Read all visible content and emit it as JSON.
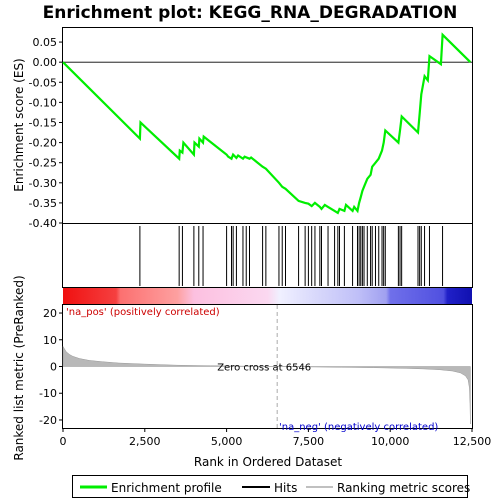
{
  "chart_data": {
    "type": "line",
    "title": "Enrichment plot: KEGG_RNA_DEGRADATION",
    "es_panel": {
      "ylabel": "Enrichment score (ES)",
      "ylim": [
        -0.4,
        0.085
      ],
      "yticks": [
        0.05,
        0.0,
        -0.05,
        -0.1,
        -0.15,
        -0.2,
        -0.25,
        -0.3,
        -0.35,
        -0.4
      ],
      "ytick_labels": [
        "0.05",
        "0.00",
        "-0.05",
        "-0.10",
        "-0.15",
        "-0.20",
        "-0.25",
        "-0.30",
        "-0.35",
        "-0.40"
      ],
      "line_color": "#00ee00",
      "points": [
        [
          0,
          0.0
        ],
        [
          2350,
          -0.19
        ],
        [
          2370,
          -0.15
        ],
        [
          3550,
          -0.24
        ],
        [
          3570,
          -0.22
        ],
        [
          3650,
          -0.225
        ],
        [
          3680,
          -0.2
        ],
        [
          4000,
          -0.23
        ],
        [
          4020,
          -0.2
        ],
        [
          4150,
          -0.21
        ],
        [
          4170,
          -0.19
        ],
        [
          4280,
          -0.2
        ],
        [
          4300,
          -0.185
        ],
        [
          5000,
          -0.23
        ],
        [
          5050,
          -0.235
        ],
        [
          5150,
          -0.24
        ],
        [
          5200,
          -0.23
        ],
        [
          5300,
          -0.238
        ],
        [
          5350,
          -0.232
        ],
        [
          5500,
          -0.24
        ],
        [
          5550,
          -0.235
        ],
        [
          5700,
          -0.24
        ],
        [
          5750,
          -0.237
        ],
        [
          6100,
          -0.26
        ],
        [
          6200,
          -0.265
        ],
        [
          6600,
          -0.3
        ],
        [
          6700,
          -0.31
        ],
        [
          6800,
          -0.315
        ],
        [
          7200,
          -0.345
        ],
        [
          7400,
          -0.35
        ],
        [
          7500,
          -0.352
        ],
        [
          7600,
          -0.358
        ],
        [
          7700,
          -0.35
        ],
        [
          7850,
          -0.36
        ],
        [
          7900,
          -0.365
        ],
        [
          8000,
          -0.355
        ],
        [
          8100,
          -0.36
        ],
        [
          8300,
          -0.37
        ],
        [
          8400,
          -0.375
        ],
        [
          8450,
          -0.365
        ],
        [
          8600,
          -0.37
        ],
        [
          8650,
          -0.355
        ],
        [
          8850,
          -0.37
        ],
        [
          8900,
          -0.36
        ],
        [
          9000,
          -0.37
        ],
        [
          9050,
          -0.35
        ],
        [
          9100,
          -0.335
        ],
        [
          9150,
          -0.32
        ],
        [
          9200,
          -0.31
        ],
        [
          9300,
          -0.29
        ],
        [
          9400,
          -0.28
        ],
        [
          9450,
          -0.26
        ],
        [
          9550,
          -0.25
        ],
        [
          9650,
          -0.24
        ],
        [
          9750,
          -0.22
        ],
        [
          9800,
          -0.2
        ],
        [
          9850,
          -0.17
        ],
        [
          10250,
          -0.2
        ],
        [
          10300,
          -0.17
        ],
        [
          10350,
          -0.135
        ],
        [
          10850,
          -0.175
        ],
        [
          10900,
          -0.13
        ],
        [
          10950,
          -0.08
        ],
        [
          11050,
          -0.035
        ],
        [
          11150,
          -0.045
        ],
        [
          11200,
          0.015
        ],
        [
          11550,
          -0.005
        ],
        [
          11600,
          0.068
        ],
        [
          12450,
          0.0
        ]
      ]
    },
    "hits": [
      2350,
      3550,
      3650,
      4000,
      4150,
      4280,
      5000,
      5150,
      5200,
      5300,
      5500,
      5600,
      5700,
      6100,
      6200,
      6600,
      6700,
      6800,
      7200,
      7400,
      7500,
      7600,
      7700,
      7850,
      7900,
      8100,
      8300,
      8400,
      8450,
      8600,
      8850,
      9000,
      9050,
      9100,
      9150,
      9200,
      9300,
      9400,
      9450,
      9550,
      9650,
      9750,
      9800,
      9850,
      10250,
      10300,
      10350,
      10850,
      10900,
      10950,
      11050,
      11200,
      11600
    ],
    "heatmap_labels": {
      "pos": "'na_pos' (positively correlated)",
      "neg": "'na_neg' (negatively correlated)"
    },
    "metric_panel": {
      "ylabel": "Ranked list metric (PreRanked)",
      "xlabel": "Rank in Ordered Dataset",
      "ylim": [
        -23,
        23
      ],
      "yticks": [
        20,
        10,
        0,
        -10,
        -20
      ],
      "ytick_labels": [
        "20",
        "10",
        "0",
        "-10",
        "-20"
      ],
      "zero_cross_label": "Zero cross at 6546",
      "zero_cross": 6546,
      "metric_profile": [
        [
          0,
          7.5
        ],
        [
          50,
          6.5
        ],
        [
          100,
          5.5
        ],
        [
          200,
          4.5
        ],
        [
          300,
          3.8
        ],
        [
          500,
          3.0
        ],
        [
          800,
          2.3
        ],
        [
          1200,
          1.8
        ],
        [
          1700,
          1.3
        ],
        [
          2500,
          0.9
        ],
        [
          3500,
          0.5
        ],
        [
          4500,
          0.3
        ],
        [
          5500,
          0.15
        ],
        [
          6546,
          0.0
        ],
        [
          7500,
          -0.15
        ],
        [
          8500,
          -0.3
        ],
        [
          9500,
          -0.45
        ],
        [
          10500,
          -0.7
        ],
        [
          11000,
          -0.9
        ],
        [
          11500,
          -1.2
        ],
        [
          11900,
          -1.7
        ],
        [
          12150,
          -2.4
        ],
        [
          12300,
          -3.5
        ],
        [
          12380,
          -5.0
        ],
        [
          12420,
          -8.0
        ],
        [
          12440,
          -14.0
        ],
        [
          12450,
          -21.5
        ]
      ]
    },
    "xaxis": {
      "xlim": [
        0,
        12500
      ],
      "xticks": [
        0,
        2500,
        5000,
        7500,
        10000,
        12500
      ],
      "xtick_labels": [
        "0",
        "2,500",
        "5,000",
        "7,500",
        "10,000",
        "12,500"
      ]
    },
    "legend": {
      "placement": "bottom",
      "entries": [
        {
          "label": "Enrichment profile",
          "color": "#00ee00"
        },
        {
          "label": "Hits",
          "color": "#000000"
        },
        {
          "label": "Ranking metric scores",
          "color": "#c0c0c0"
        }
      ]
    }
  }
}
